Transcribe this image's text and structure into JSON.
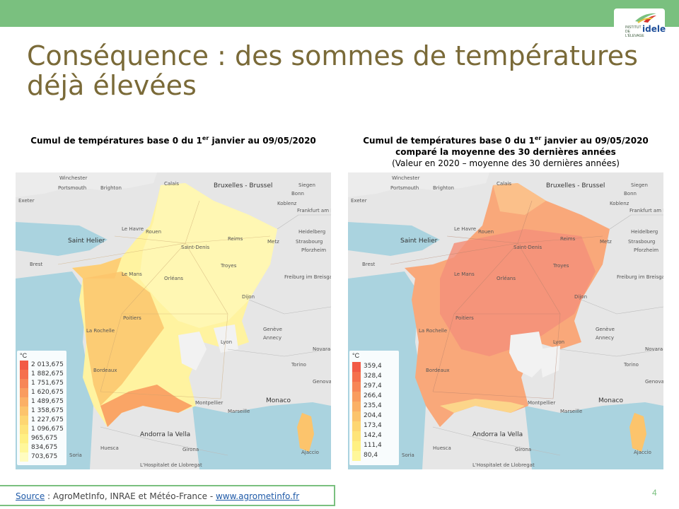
{
  "logo": {
    "brand": "idele",
    "small": "INSTITUT DE L'ÉLEVAGE"
  },
  "title": "Conséquence : des sommes de températures déjà élevées",
  "left_panel": {
    "caption_pre": "Cumul de températures base 0 du 1",
    "caption_sup": "er",
    "caption_post": " janvier au 09/05/2020",
    "legend_unit": "°C",
    "legend": [
      "2 013,675",
      "1 882,675",
      "1 751,675",
      "1 620,675",
      "1 489,675",
      "1 358,675",
      "1 227,675",
      "1 096,675",
      "965,675",
      "834,675",
      "703,675"
    ]
  },
  "right_panel": {
    "caption_pre": "Cumul de températures base 0 du 1",
    "caption_sup": "er",
    "caption_post": " janvier au 09/05/2020",
    "caption_line2": "comparé la moyenne des 30 dernières années",
    "caption_line3": "(Valeur en 2020 – moyenne des 30 dernières années)",
    "legend_unit": "°C",
    "legend": [
      "359,4",
      "328,4",
      "297,4",
      "266,4",
      "235,4",
      "204,4",
      "173,4",
      "142,4",
      "111,4",
      "80,4"
    ]
  },
  "legend_colors_left": [
    "#f25a45",
    "#f5704d",
    "#f78657",
    "#f99c5f",
    "#fbb066",
    "#fcc46c",
    "#fdd672",
    "#fee47a",
    "#fff083",
    "#fff79a",
    "#fffcc0"
  ],
  "legend_colors_right": [
    "#f25a45",
    "#f5704d",
    "#f78657",
    "#f99c5f",
    "#fbb066",
    "#fcc46c",
    "#fdd672",
    "#fee47a",
    "#fff083",
    "#fff79a"
  ],
  "map_labels": {
    "winchester": "Winchester",
    "portsmouth": "Portsmouth",
    "brighton": "Brighton",
    "calais": "Calais",
    "bruxelles": "Bruxelles - Brussel",
    "siegen": "Siegen",
    "koblenz": "Koblenz",
    "bonn": "Bonn",
    "frankfurt": "Frankfurt am Main",
    "exeter": "Exeter",
    "heidelberg": "Heidelberg",
    "saint_helier": "Saint Helier",
    "le_havre": "Le Havre",
    "rouen": "Rouen",
    "reims": "Reims",
    "metz": "Metz",
    "strasbourg": "Strasbourg",
    "pforzheim": "Pforzheim",
    "brest": "Brest",
    "saint_denis": "Saint-Denis",
    "le_mans": "Le Mans",
    "orleans": "Orléans",
    "troyes": "Troyes",
    "freiburg": "Freiburg im Breisgau",
    "dijon": "Dijon",
    "poitiers": "Poitiers",
    "la_rochelle": "La Rochelle",
    "geneve": "Genève",
    "lyon": "Lyon",
    "annecy": "Annecy",
    "novara": "Novara",
    "bordeaux": "Bordeaux",
    "torino": "Torino",
    "genova": "Genova",
    "monaco": "Monaco",
    "montpellier": "Montpellier",
    "marseille": "Marseille",
    "andorra": "Andorra la Vella",
    "ajaccio": "Ajaccio",
    "huesca": "Huesca",
    "girona": "Girona",
    "soria": "Soria",
    "hospitalet": "L'Hospitalet de Llobregat"
  },
  "source": {
    "label": "Source",
    "text": " : AgroMetInfo, INRAE et Météo-France - ",
    "url": "www.agrometinfo.fr"
  },
  "page_number": "4"
}
